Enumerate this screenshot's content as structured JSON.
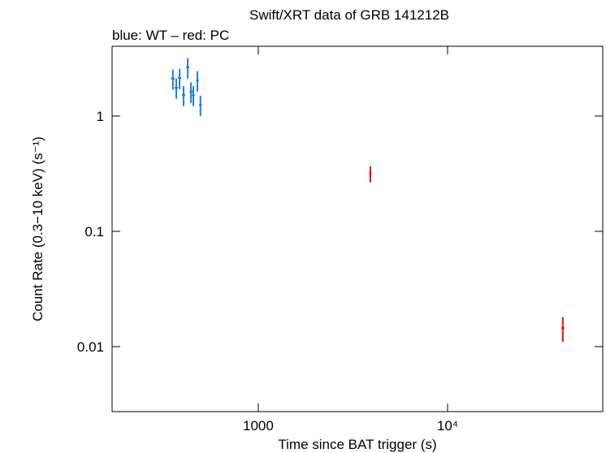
{
  "chart_data": {
    "type": "scatter",
    "title": "Swift/XRT data of GRB 141212B",
    "subtitle": "blue: WT – red: PC",
    "x_label": "Time since BAT trigger (s)",
    "y_label": "Count Rate (0.3−10 keV) (s⁻¹)",
    "xscale": "log",
    "yscale": "log",
    "xlim": [
      169,
      66000
    ],
    "ylim": [
      0.00273,
      4.03
    ],
    "xticks": [
      1000,
      {
        "value": 10000,
        "label": "10⁴"
      }
    ],
    "yticks": [
      0.01,
      0.1,
      1
    ],
    "series": [
      {
        "name": "WT",
        "color": "#1f7fe0",
        "x": [
          354,
          369,
          384,
          403,
          424,
          441,
          454,
          477,
          495
        ],
        "values": [
          2.11,
          1.76,
          2.14,
          1.52,
          2.65,
          1.63,
          1.52,
          2.04,
          1.25
        ],
        "xerr": [
          8,
          8,
          8,
          8,
          8,
          8,
          8,
          8,
          8
        ],
        "yerr": [
          0.42,
          0.35,
          0.43,
          0.3,
          0.53,
          0.33,
          0.3,
          0.41,
          0.25
        ]
      },
      {
        "name": "PC",
        "color": "#e01010",
        "x": [
          3910,
          40600
        ],
        "values": [
          0.316,
          0.0145
        ],
        "xerr": [
          40,
          800
        ],
        "yerr": [
          0.05,
          0.0035
        ]
      }
    ]
  }
}
